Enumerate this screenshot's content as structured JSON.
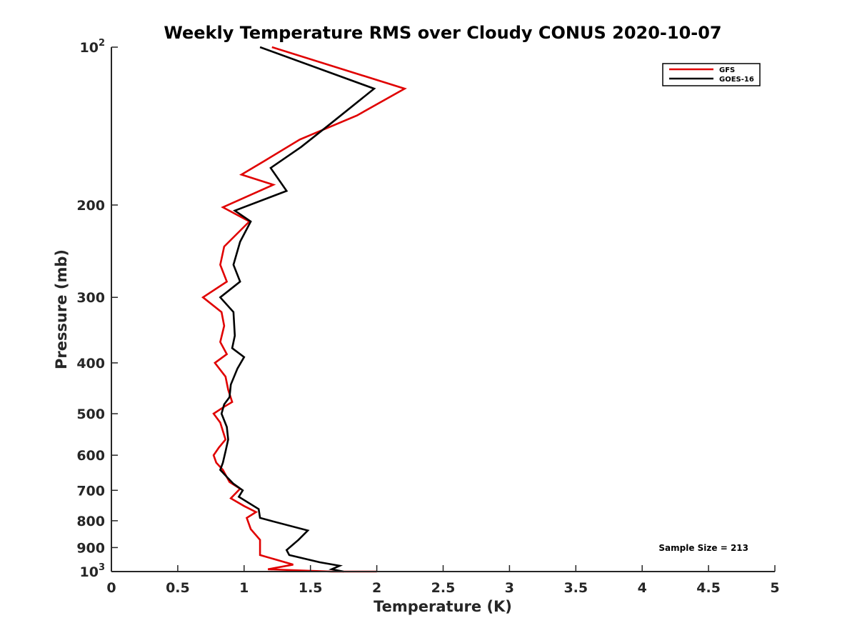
{
  "chart_data": {
    "type": "line",
    "title": "Weekly Temperature RMS over Cloudy CONUS 2020-10-07",
    "xlabel": "Temperature (K)",
    "ylabel": "Pressure (mb)",
    "xlim": [
      0,
      5
    ],
    "ylim": [
      100,
      1000
    ],
    "y_scale": "log",
    "y_reversed": true,
    "grid": false,
    "legend_position": "top-right",
    "x_ticks": [
      {
        "value": 0,
        "label": "0"
      },
      {
        "value": 0.5,
        "label": "0.5"
      },
      {
        "value": 1,
        "label": "1"
      },
      {
        "value": 1.5,
        "label": "1.5"
      },
      {
        "value": 2,
        "label": "2"
      },
      {
        "value": 2.5,
        "label": "2.5"
      },
      {
        "value": 3,
        "label": "3"
      },
      {
        "value": 3.5,
        "label": "3.5"
      },
      {
        "value": 4,
        "label": "4"
      },
      {
        "value": 4.5,
        "label": "4.5"
      },
      {
        "value": 5,
        "label": "5"
      }
    ],
    "y_ticks": [
      {
        "value": 100,
        "label": "10",
        "sup": "2"
      },
      {
        "value": 200,
        "label": "200"
      },
      {
        "value": 300,
        "label": "300"
      },
      {
        "value": 400,
        "label": "400"
      },
      {
        "value": 500,
        "label": "500"
      },
      {
        "value": 600,
        "label": "600"
      },
      {
        "value": 700,
        "label": "700"
      },
      {
        "value": 800,
        "label": "800"
      },
      {
        "value": 900,
        "label": "900"
      },
      {
        "value": 1000,
        "label": "10",
        "sup": "3"
      }
    ],
    "annotation": "Sample Size = 213",
    "series": [
      {
        "name": "GFS",
        "color": "#e00000",
        "points": [
          [
            1.21,
            100
          ],
          [
            2.21,
            120
          ],
          [
            1.85,
            135
          ],
          [
            1.42,
            150
          ],
          [
            1.15,
            165
          ],
          [
            0.98,
            175
          ],
          [
            1.22,
            183
          ],
          [
            0.84,
            202
          ],
          [
            1.04,
            215
          ],
          [
            0.85,
            240
          ],
          [
            0.82,
            260
          ],
          [
            0.87,
            280
          ],
          [
            0.69,
            300
          ],
          [
            0.83,
            320
          ],
          [
            0.85,
            340
          ],
          [
            0.82,
            365
          ],
          [
            0.87,
            385
          ],
          [
            0.78,
            400
          ],
          [
            0.86,
            425
          ],
          [
            0.88,
            450
          ],
          [
            0.91,
            475
          ],
          [
            0.85,
            485
          ],
          [
            0.77,
            500
          ],
          [
            0.82,
            520
          ],
          [
            0.86,
            560
          ],
          [
            0.81,
            580
          ],
          [
            0.77,
            600
          ],
          [
            0.79,
            620
          ],
          [
            0.84,
            640
          ],
          [
            0.89,
            675
          ],
          [
            0.97,
            695
          ],
          [
            0.9,
            725
          ],
          [
            1.0,
            750
          ],
          [
            1.09,
            770
          ],
          [
            1.02,
            790
          ],
          [
            1.05,
            830
          ],
          [
            1.12,
            870
          ],
          [
            1.12,
            930
          ],
          [
            1.37,
            970
          ],
          [
            1.18,
            990
          ],
          [
            1.66,
            1000
          ],
          [
            2.0,
            1000
          ]
        ]
      },
      {
        "name": "GOES-16",
        "color": "#000000",
        "points": [
          [
            1.12,
            100
          ],
          [
            1.98,
            120
          ],
          [
            1.65,
            140
          ],
          [
            1.43,
            155
          ],
          [
            1.2,
            170
          ],
          [
            1.32,
            188
          ],
          [
            0.93,
            205
          ],
          [
            1.05,
            215
          ],
          [
            0.97,
            235
          ],
          [
            0.92,
            260
          ],
          [
            0.97,
            280
          ],
          [
            0.82,
            300
          ],
          [
            0.92,
            320
          ],
          [
            0.93,
            355
          ],
          [
            0.91,
            375
          ],
          [
            1.0,
            390
          ],
          [
            0.95,
            410
          ],
          [
            0.9,
            440
          ],
          [
            0.89,
            465
          ],
          [
            0.85,
            480
          ],
          [
            0.83,
            500
          ],
          [
            0.87,
            530
          ],
          [
            0.88,
            560
          ],
          [
            0.86,
            590
          ],
          [
            0.84,
            620
          ],
          [
            0.82,
            640
          ],
          [
            0.87,
            660
          ],
          [
            0.92,
            680
          ],
          [
            0.99,
            700
          ],
          [
            0.96,
            720
          ],
          [
            1.11,
            760
          ],
          [
            1.12,
            790
          ],
          [
            1.2,
            800
          ],
          [
            1.48,
            835
          ],
          [
            1.41,
            870
          ],
          [
            1.32,
            910
          ],
          [
            1.34,
            930
          ],
          [
            1.57,
            960
          ],
          [
            1.72,
            975
          ],
          [
            1.66,
            990
          ],
          [
            1.75,
            1000
          ]
        ]
      }
    ]
  }
}
